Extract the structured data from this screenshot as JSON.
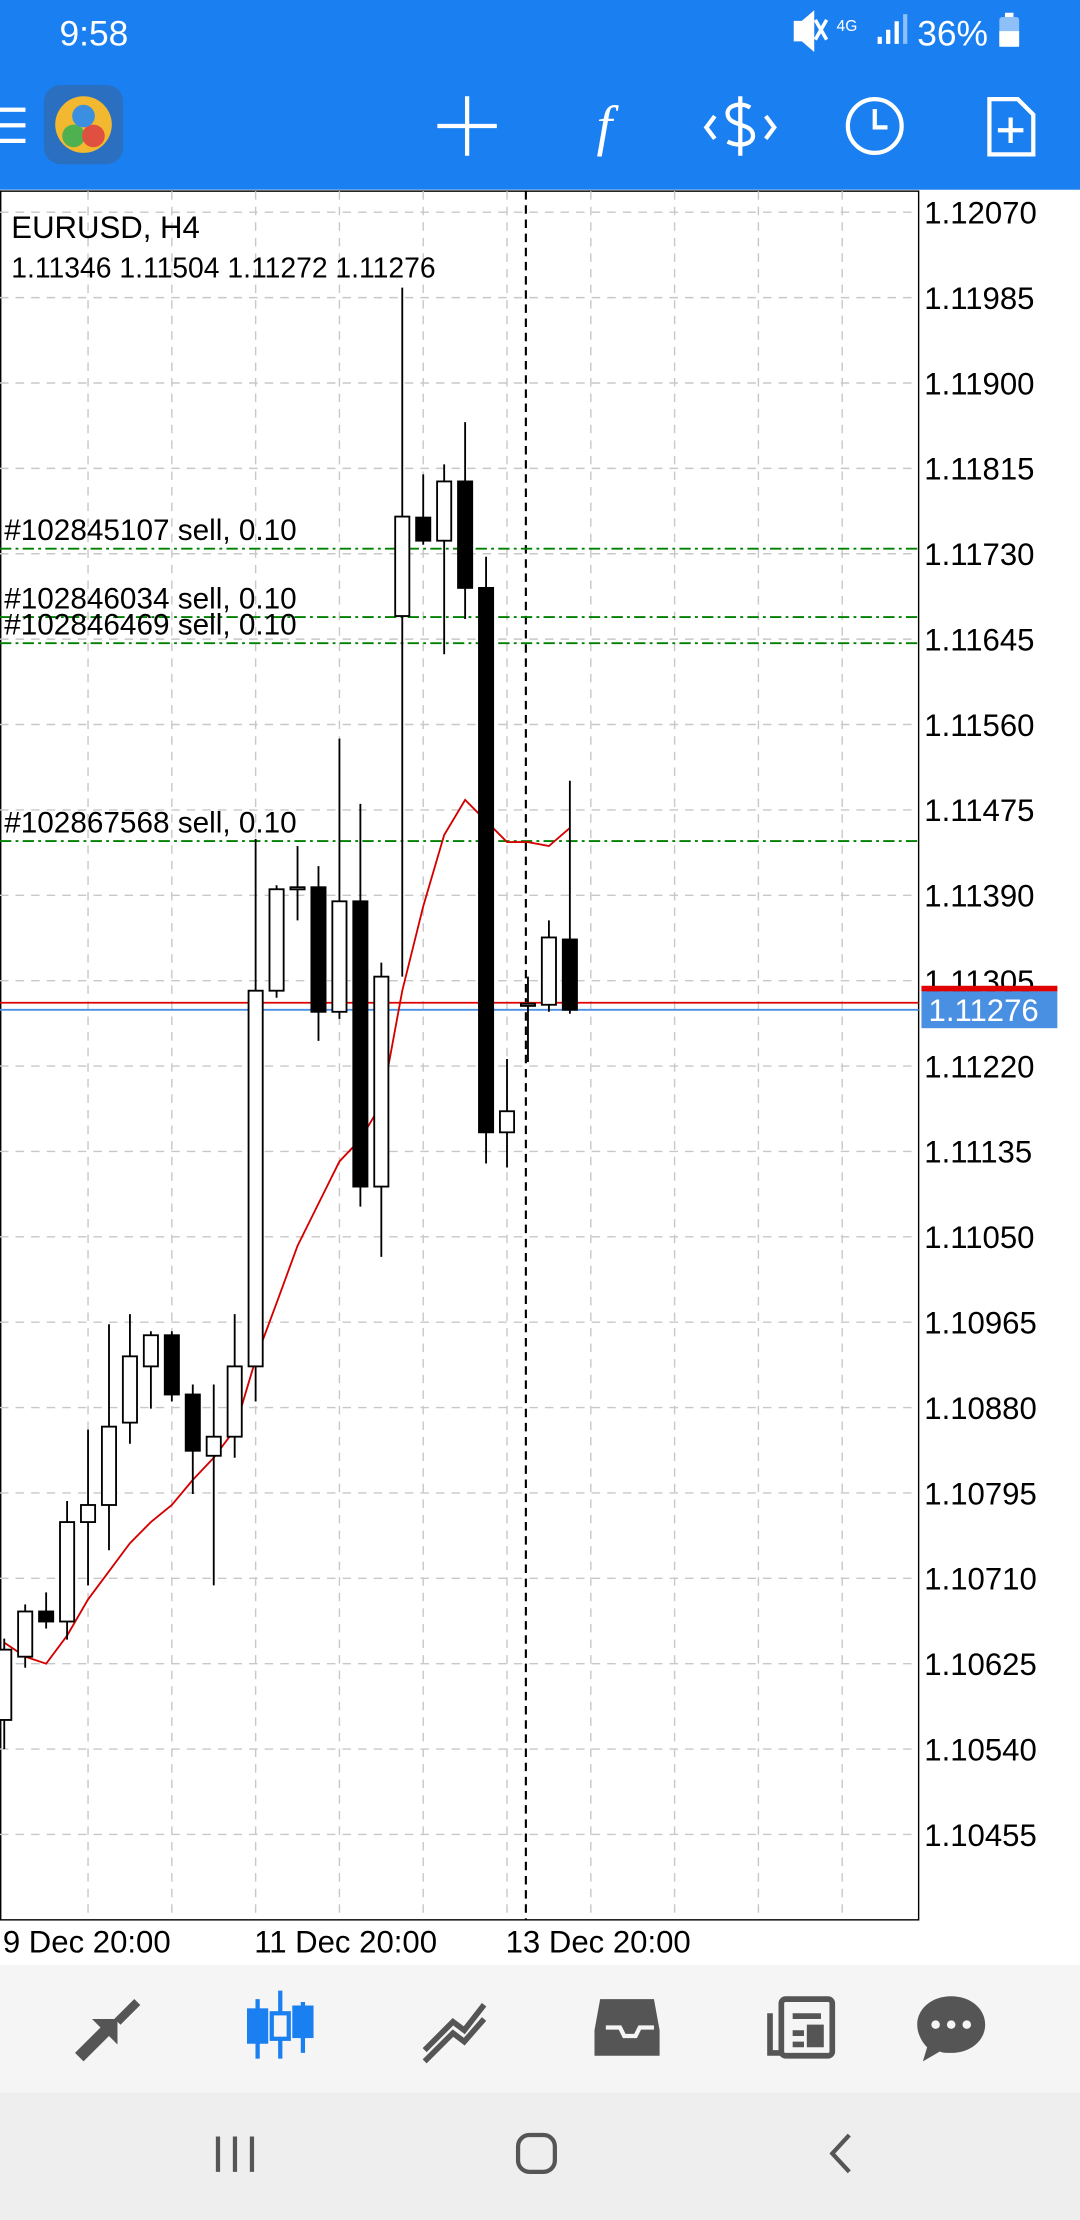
{
  "status_bar": {
    "time": "9:58",
    "network": "4G",
    "battery": "36%"
  },
  "chart_data": {
    "type": "candlestick",
    "title": "EURUSD, H4",
    "subtitle": "1.11346 1.11504 1.11272 1.11276",
    "categories": [
      "9 Dec 20:00",
      null,
      null,
      null,
      null,
      null,
      null,
      null,
      null,
      null,
      null,
      null,
      "11 Dec 20:00",
      null,
      null,
      null,
      null,
      null,
      null,
      null,
      null,
      null,
      null,
      null,
      "13 Dec 20:00",
      null,
      null,
      null
    ],
    "open": [
      1.10569,
      1.10632,
      1.10677,
      1.10667,
      1.10766,
      1.10783,
      1.10865,
      1.10921,
      1.10952,
      1.10893,
      1.10832,
      1.10851,
      1.10921,
      1.11295,
      1.11396,
      1.11398,
      1.11274,
      1.11384,
      1.111,
      1.11668,
      1.11766,
      1.11743,
      1.11802,
      1.11696,
      1.11154,
      1.1128,
      1.11281,
      1.11346
    ],
    "high": [
      1.1065,
      1.10684,
      1.10696,
      1.10787,
      1.10858,
      1.10963,
      1.10973,
      1.10956,
      1.10956,
      1.10903,
      1.10903,
      1.10973,
      1.11446,
      1.114,
      1.11439,
      1.11419,
      1.11546,
      1.11481,
      1.11323,
      1.11995,
      1.11809,
      1.11819,
      1.11861,
      1.11727,
      1.11227,
      1.11309,
      1.11365,
      1.11504
    ],
    "low": [
      1.1054,
      1.10621,
      1.1066,
      1.10649,
      1.10703,
      1.10738,
      1.10844,
      1.10879,
      1.10886,
      1.10794,
      1.10703,
      1.1083,
      1.10886,
      1.11288,
      1.11365,
      1.11245,
      1.11267,
      1.1108,
      1.1103,
      1.11309,
      1.11739,
      1.1163,
      1.11665,
      1.11123,
      1.11119,
      1.11224,
      1.11274,
      1.11272
    ],
    "close": [
      1.10639,
      1.10677,
      1.10667,
      1.10766,
      1.10783,
      1.10861,
      1.10931,
      1.10952,
      1.10893,
      1.10837,
      1.10851,
      1.10921,
      1.11295,
      1.11396,
      1.11398,
      1.11274,
      1.11384,
      1.111,
      1.11309,
      1.11767,
      1.11743,
      1.11802,
      1.11696,
      1.11154,
      1.11175,
      1.11282,
      1.11348,
      1.11276
    ],
    "up_color": "#ffffff",
    "down_color": "#000000",
    "ma": {
      "color": "#d40000",
      "values": [
        1.10646,
        1.10632,
        1.10625,
        1.10653,
        1.10689,
        1.10717,
        1.10745,
        1.10766,
        1.10783,
        1.10808,
        1.1083,
        1.10858,
        1.10928,
        1.10984,
        1.11041,
        1.11083,
        1.11125,
        1.11147,
        1.11182,
        1.11295,
        1.11379,
        1.1145,
        1.11485,
        1.11464,
        1.11443,
        1.11443,
        1.11439,
        1.11457
      ]
    },
    "orders": [
      {
        "label": "#102845107 sell, 0.10",
        "price": 1.11735
      },
      {
        "label": "#102846034 sell, 0.10",
        "price": 1.11667
      },
      {
        "label": "#102846469 sell, 0.10",
        "price": 1.11641
      },
      {
        "label": "#102867568 sell, 0.10",
        "price": 1.11444
      }
    ],
    "order_color": "#008000",
    "bid": {
      "value": 1.11276,
      "color": "#4a90e2"
    },
    "ask": {
      "value": 1.11283,
      "color": "#e00000"
    },
    "ylim": [
      1.1037,
      1.12091
    ],
    "yticks": [
      {
        "value": 1.1207,
        "label": "1.12070"
      },
      1.11985,
      {
        "value": 1.119,
        "label": "1.11900"
      },
      1.11815,
      {
        "value": 1.1173,
        "label": "1.11730"
      },
      1.11645,
      {
        "value": 1.1156,
        "label": "1.11560"
      },
      1.11475,
      {
        "value": 1.1139,
        "label": "1.11390"
      },
      1.11305,
      {
        "value": 1.1122,
        "label": "1.11220"
      },
      1.11135,
      {
        "value": 1.1105,
        "label": "1.11050"
      },
      1.10965,
      {
        "value": 1.1088,
        "label": "1.10880"
      },
      1.10795,
      {
        "value": 1.1071,
        "label": "1.10710"
      },
      1.10625,
      {
        "value": 1.1054,
        "label": "1.10540"
      },
      1.10455
    ],
    "grid": true
  }
}
